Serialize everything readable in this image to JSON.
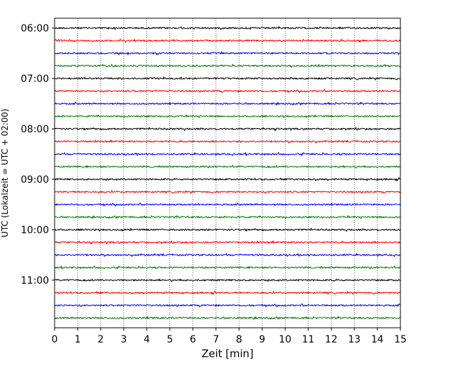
{
  "chart_data": {
    "type": "line",
    "subtype": "helicorder",
    "title": "",
    "xlabel": "Zeit  [min]",
    "ylabel": "UTC (Lokalzeit = UTC + 02:00)",
    "xlim": [
      0,
      15
    ],
    "x_ticks": [
      0,
      1,
      2,
      3,
      4,
      5,
      6,
      7,
      8,
      9,
      10,
      11,
      12,
      13,
      14,
      15
    ],
    "x_tick_labels": [
      "0",
      "1",
      "2",
      "3",
      "4",
      "5",
      "6",
      "7",
      "8",
      "9",
      "10",
      "11",
      "12",
      "13",
      "14",
      "15"
    ],
    "y_tick_labels": [
      "06:00",
      "07:00",
      "08:00",
      "09:00",
      "10:00",
      "11:00"
    ],
    "rows_per_hour": 4,
    "trace_colors": [
      "#000000",
      "#ff0000",
      "#0000ff",
      "#008000"
    ],
    "grid": "x, dotted",
    "legend": "none",
    "traces": [
      {
        "start": "06:00",
        "color": "#000000"
      },
      {
        "start": "06:15",
        "color": "#ff0000"
      },
      {
        "start": "06:30",
        "color": "#0000ff"
      },
      {
        "start": "06:45",
        "color": "#008000"
      },
      {
        "start": "07:00",
        "color": "#000000"
      },
      {
        "start": "07:15",
        "color": "#ff0000"
      },
      {
        "start": "07:30",
        "color": "#0000ff"
      },
      {
        "start": "07:45",
        "color": "#008000"
      },
      {
        "start": "08:00",
        "color": "#000000"
      },
      {
        "start": "08:15",
        "color": "#ff0000"
      },
      {
        "start": "08:30",
        "color": "#0000ff"
      },
      {
        "start": "08:45",
        "color": "#008000"
      },
      {
        "start": "09:00",
        "color": "#000000"
      },
      {
        "start": "09:15",
        "color": "#ff0000"
      },
      {
        "start": "09:30",
        "color": "#0000ff"
      },
      {
        "start": "09:45",
        "color": "#008000"
      },
      {
        "start": "10:00",
        "color": "#000000"
      },
      {
        "start": "10:15",
        "color": "#ff0000"
      },
      {
        "start": "10:30",
        "color": "#0000ff"
      },
      {
        "start": "10:45",
        "color": "#008000"
      },
      {
        "start": "11:00",
        "color": "#000000"
      },
      {
        "start": "11:15",
        "color": "#ff0000"
      },
      {
        "start": "11:30",
        "color": "#0000ff"
      },
      {
        "start": "11:45",
        "color": "#008000"
      }
    ]
  }
}
